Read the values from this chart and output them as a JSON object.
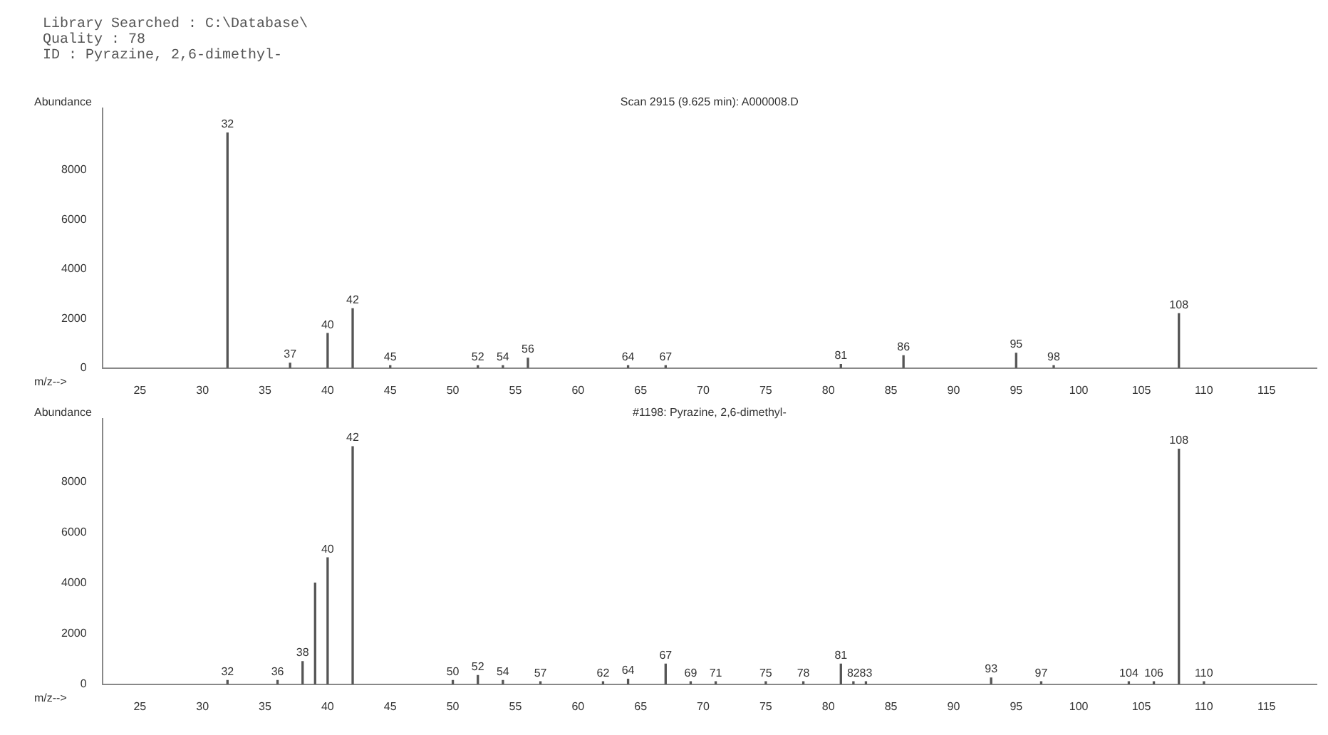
{
  "chart_data": [
    {
      "type": "bar",
      "title": "Scan 2915 (9.625 min): A000008.D",
      "xlabel": "m/z-->",
      "ylabel": "Abundance",
      "annotations": [
        "Library Searched : C:\\Database\\",
        "Quality : 78",
        "ID : Pyrazine, 2,6-dimethyl-",
        {
          "text": "32",
          "x": 32,
          "y": 9500
        },
        {
          "text": "37",
          "x": 37,
          "y": 200
        },
        {
          "text": "40",
          "x": 40,
          "y": 1400
        },
        {
          "text": "42",
          "x": 42,
          "y": 2400
        },
        {
          "text": "45",
          "x": 45,
          "y": 100
        },
        {
          "text": "52",
          "x": 52,
          "y": 100
        },
        {
          "text": "54",
          "x": 54,
          "y": 100
        },
        {
          "text": "56",
          "x": 56,
          "y": 400
        },
        {
          "text": "64",
          "x": 64,
          "y": 100
        },
        {
          "text": "67",
          "x": 67,
          "y": 100
        },
        {
          "text": "81",
          "x": 81,
          "y": 150
        },
        {
          "text": "86",
          "x": 86,
          "y": 500
        },
        {
          "text": "95",
          "x": 95,
          "y": 600
        },
        {
          "text": "98",
          "x": 98,
          "y": 100
        },
        {
          "text": "108",
          "x": 108,
          "y": 2200
        }
      ],
      "x": [
        32,
        37,
        40,
        42,
        45,
        52,
        54,
        56,
        64,
        67,
        81,
        86,
        95,
        98,
        108
      ],
      "values": [
        9500,
        200,
        1400,
        2400,
        100,
        100,
        100,
        400,
        100,
        100,
        150,
        500,
        600,
        100,
        2200
      ],
      "color": "#555555",
      "xlim": [
        22,
        119
      ],
      "xticks": [
        25,
        30,
        35,
        40,
        45,
        50,
        55,
        60,
        65,
        70,
        75,
        80,
        85,
        90,
        95,
        100,
        105,
        110,
        115
      ],
      "ylim": [
        0,
        10500
      ],
      "yticks": [
        0,
        2000,
        4000,
        6000,
        8000
      ],
      "grid": false,
      "legend": false
    },
    {
      "type": "bar",
      "title": "#1198: Pyrazine, 2,6-dimethyl-",
      "xlabel": "m/z-->",
      "ylabel": "Abundance",
      "annotations": [
        {
          "text": "32",
          "x": 32,
          "y": 150
        },
        {
          "text": "36",
          "x": 36,
          "y": 150
        },
        {
          "text": "38",
          "x": 38,
          "y": 900
        },
        {
          "text": "40",
          "x": 40,
          "y": 5000
        },
        {
          "text": "42",
          "x": 42,
          "y": 9400
        },
        {
          "text": "50",
          "x": 50,
          "y": 150
        },
        {
          "text": "52",
          "x": 52,
          "y": 350
        },
        {
          "text": "54",
          "x": 54,
          "y": 150
        },
        {
          "text": "57",
          "x": 57,
          "y": 100
        },
        {
          "text": "62",
          "x": 62,
          "y": 100
        },
        {
          "text": "64",
          "x": 64,
          "y": 200
        },
        {
          "text": "67",
          "x": 67,
          "y": 800
        },
        {
          "text": "69",
          "x": 69,
          "y": 100
        },
        {
          "text": "71",
          "x": 71,
          "y": 100
        },
        {
          "text": "75",
          "x": 75,
          "y": 100
        },
        {
          "text": "78",
          "x": 78,
          "y": 100
        },
        {
          "text": "81",
          "x": 81,
          "y": 800
        },
        {
          "text": "82",
          "x": 82,
          "y": 100
        },
        {
          "text": "83",
          "x": 83,
          "y": 100
        },
        {
          "text": "93",
          "x": 93,
          "y": 250
        },
        {
          "text": "97",
          "x": 97,
          "y": 100
        },
        {
          "text": "104",
          "x": 104,
          "y": 100
        },
        {
          "text": "106",
          "x": 106,
          "y": 100
        },
        {
          "text": "108",
          "x": 108,
          "y": 9300
        },
        {
          "text": "110",
          "x": 110,
          "y": 100
        }
      ],
      "x": [
        32,
        36,
        38,
        39,
        40,
        42,
        50,
        52,
        54,
        57,
        62,
        64,
        67,
        69,
        71,
        75,
        78,
        81,
        82,
        83,
        93,
        97,
        104,
        106,
        108,
        110
      ],
      "values": [
        150,
        150,
        900,
        4000,
        5000,
        9400,
        150,
        350,
        150,
        100,
        100,
        200,
        800,
        100,
        100,
        100,
        100,
        800,
        100,
        100,
        250,
        100,
        100,
        100,
        9300,
        100
      ],
      "color": "#555555",
      "xlim": [
        22,
        119
      ],
      "xticks": [
        25,
        30,
        35,
        40,
        45,
        50,
        55,
        60,
        65,
        70,
        75,
        80,
        85,
        90,
        95,
        100,
        105,
        110,
        115
      ],
      "ylim": [
        0,
        10500
      ],
      "yticks": [
        0,
        2000,
        4000,
        6000,
        8000
      ],
      "grid": false,
      "legend": false
    }
  ]
}
